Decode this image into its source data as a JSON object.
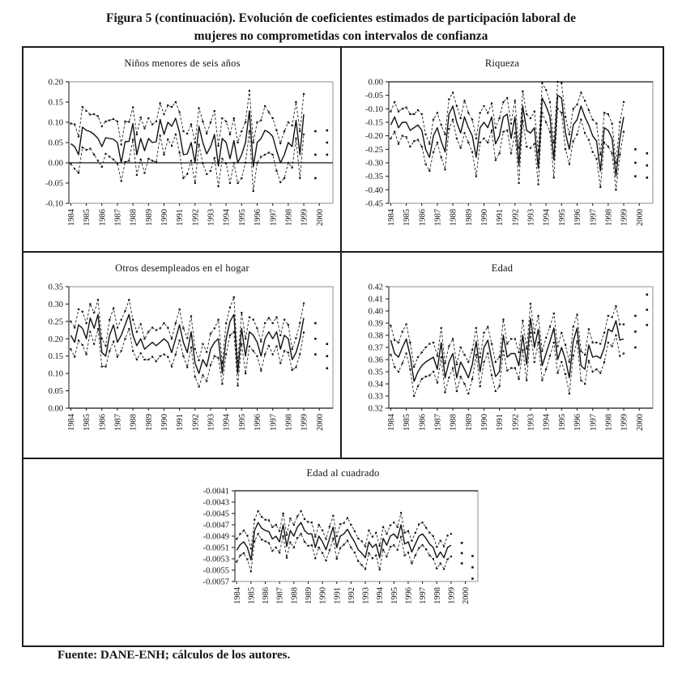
{
  "figure": {
    "title_line1": "Figura 5 (continuación). Evolución de coeficientes estimados de participación laboral de",
    "title_line2": "mujeres no comprometidas con intervalos de confianza",
    "source": "Fuente: DANE-ENH; cálculos de los autores."
  },
  "x_tick_labels": [
    "1984",
    "1985",
    "1986",
    "1987",
    "1988",
    "1989",
    "1990",
    "1991",
    "1992",
    "1993",
    "1994",
    "1995",
    "1996",
    "1997",
    "1998",
    "1999",
    "2000"
  ],
  "chart_data": [
    {
      "type": "line",
      "title": "Niños menores de seis años",
      "xlabel": "",
      "ylabel": "",
      "ylim": [
        -0.1,
        0.2
      ],
      "ytick_values": [
        0.2,
        0.15,
        0.1,
        0.05,
        0.0,
        -0.05,
        -0.1
      ],
      "ytick_labels": [
        "0.20",
        "0.15",
        "0.10",
        "0.05",
        "0.00",
        "-0.05",
        "-0.10"
      ],
      "axis_cross": 0.0,
      "x_frequency": "trimestral 1984-1999, puntos aislados hasta 2000",
      "legend_note": "línea sólida: coeficiente estimado; líneas punteadas: intervalo de confianza",
      "series": {
        "coef": [
          0.047,
          0.04,
          0.02,
          0.088,
          0.08,
          0.077,
          0.07,
          0.06,
          0.04,
          0.062,
          0.06,
          0.058,
          0.05,
          0.0,
          0.052,
          0.053,
          0.097,
          0.02,
          0.06,
          0.03,
          0.06,
          0.05,
          0.052,
          0.107,
          0.07,
          0.1,
          0.09,
          0.11,
          0.075,
          0.02,
          0.022,
          0.05,
          0.0,
          0.09,
          0.05,
          0.022,
          0.04,
          0.07,
          -0.008,
          0.06,
          0.05,
          0.01,
          0.055,
          0.0,
          0.02,
          0.05,
          0.128,
          -0.01,
          0.05,
          0.06,
          0.08,
          0.075,
          0.065,
          0.03,
          0.0,
          0.02,
          0.05,
          0.04,
          0.105,
          0.02,
          0.12
        ],
        "ci_halfwidth": [
          0.05,
          0.055,
          0.045,
          0.05,
          0.048,
          0.042,
          0.05,
          0.055,
          0.05,
          0.04,
          0.045,
          0.05,
          0.052,
          0.045,
          0.05,
          0.048,
          0.04,
          0.05,
          0.052,
          0.055,
          0.05,
          0.045,
          0.05,
          0.04,
          0.05,
          0.042,
          0.048,
          0.04,
          0.05,
          0.058,
          0.05,
          0.045,
          0.05,
          0.045,
          0.052,
          0.05,
          0.06,
          0.058,
          0.05,
          0.05,
          0.052,
          0.06,
          0.055,
          0.05,
          0.058,
          0.05,
          0.05,
          0.06,
          0.05,
          0.045,
          0.06,
          0.05,
          0.045,
          0.05,
          0.048,
          0.058,
          0.05,
          0.052,
          0.045,
          0.058,
          0.05
        ]
      },
      "isolated_points": {
        "slots": [
          63,
          66
        ],
        "coef": [
          0.02,
          0.05
        ],
        "ci_halfwidth": [
          0.058,
          0.03
        ]
      }
    },
    {
      "type": "line",
      "title": "Riqueza",
      "xlabel": "",
      "ylabel": "",
      "ylim": [
        -0.45,
        0.0
      ],
      "ytick_values": [
        0.0,
        -0.05,
        -0.1,
        -0.15,
        -0.2,
        -0.25,
        -0.3,
        -0.35,
        -0.4,
        -0.45
      ],
      "ytick_labels": [
        "0.00",
        "-0.05",
        "-0.10",
        "-0.15",
        "-0.20",
        "-0.25",
        "-0.30",
        "-0.35",
        "-0.40",
        "-0.45"
      ],
      "axis_cross": 0.0,
      "x_frequency": "trimestral 1984-1999, puntos aislados hasta 2000",
      "legend_note": "línea sólida: coeficiente estimado; líneas punteadas: intervalo de confianza",
      "series": {
        "coef": [
          -0.16,
          -0.13,
          -0.17,
          -0.15,
          -0.15,
          -0.18,
          -0.17,
          -0.16,
          -0.18,
          -0.25,
          -0.28,
          -0.2,
          -0.17,
          -0.22,
          -0.26,
          -0.12,
          -0.09,
          -0.15,
          -0.19,
          -0.13,
          -0.17,
          -0.2,
          -0.28,
          -0.17,
          -0.15,
          -0.17,
          -0.13,
          -0.23,
          -0.2,
          -0.13,
          -0.12,
          -0.21,
          -0.13,
          -0.31,
          -0.09,
          -0.18,
          -0.19,
          -0.17,
          -0.32,
          -0.06,
          -0.09,
          -0.13,
          -0.29,
          -0.05,
          -0.06,
          -0.19,
          -0.25,
          -0.16,
          -0.14,
          -0.09,
          -0.13,
          -0.16,
          -0.2,
          -0.22,
          -0.33,
          -0.17,
          -0.18,
          -0.21,
          -0.35,
          -0.21,
          -0.13
        ],
        "ci_halfwidth": [
          0.05,
          0.055,
          0.06,
          0.05,
          0.055,
          0.06,
          0.05,
          0.055,
          0.06,
          0.055,
          0.05,
          0.06,
          0.055,
          0.06,
          0.065,
          0.055,
          0.05,
          0.06,
          0.055,
          0.06,
          0.055,
          0.06,
          0.07,
          0.055,
          0.06,
          0.055,
          0.05,
          0.06,
          0.065,
          0.055,
          0.06,
          0.055,
          0.06,
          0.065,
          0.055,
          0.06,
          0.055,
          0.06,
          0.06,
          0.055,
          0.06,
          0.055,
          0.065,
          0.05,
          0.055,
          0.06,
          0.055,
          0.06,
          0.055,
          0.05,
          0.06,
          0.055,
          0.06,
          0.065,
          0.06,
          0.055,
          0.06,
          0.055,
          0.05,
          0.06,
          0.055
        ]
      },
      "isolated_points": {
        "slots": [
          63,
          66
        ],
        "coef": [
          -0.3,
          -0.31
        ],
        "ci_halfwidth": [
          0.05,
          0.045
        ]
      }
    },
    {
      "type": "line",
      "title": "Otros desempleados en el hogar",
      "xlabel": "",
      "ylabel": "",
      "ylim": [
        0.0,
        0.35
      ],
      "ytick_values": [
        0.35,
        0.3,
        0.25,
        0.2,
        0.15,
        0.1,
        0.05,
        0.0
      ],
      "ytick_labels": [
        "0.35",
        "0.30",
        "0.25",
        "0.20",
        "0.15",
        "0.10",
        "0.05",
        "0.00"
      ],
      "axis_cross": 0.0,
      "x_frequency": "trimestral 1984-1999, puntos aislados hasta 2000",
      "legend_note": "línea sólida: coeficiente estimado; líneas punteadas: intervalo de confianza",
      "series": {
        "coef": [
          0.21,
          0.19,
          0.24,
          0.23,
          0.2,
          0.26,
          0.23,
          0.27,
          0.16,
          0.15,
          0.21,
          0.24,
          0.19,
          0.21,
          0.24,
          0.27,
          0.21,
          0.18,
          0.2,
          0.17,
          0.18,
          0.19,
          0.18,
          0.19,
          0.2,
          0.19,
          0.16,
          0.2,
          0.24,
          0.19,
          0.16,
          0.22,
          0.13,
          0.1,
          0.14,
          0.12,
          0.17,
          0.19,
          0.2,
          0.1,
          0.2,
          0.25,
          0.27,
          0.1,
          0.23,
          0.15,
          0.22,
          0.21,
          0.19,
          0.15,
          0.2,
          0.22,
          0.2,
          0.22,
          0.17,
          0.21,
          0.2,
          0.14,
          0.16,
          0.2,
          0.26
        ],
        "ci_halfwidth": [
          0.04,
          0.042,
          0.045,
          0.048,
          0.045,
          0.04,
          0.045,
          0.042,
          0.04,
          0.03,
          0.045,
          0.048,
          0.042,
          0.045,
          0.04,
          0.042,
          0.045,
          0.04,
          0.042,
          0.03,
          0.04,
          0.042,
          0.045,
          0.04,
          0.045,
          0.042,
          0.04,
          0.045,
          0.045,
          0.04,
          0.042,
          0.045,
          0.04,
          0.038,
          0.045,
          0.042,
          0.045,
          0.04,
          0.055,
          0.03,
          0.045,
          0.04,
          0.05,
          0.035,
          0.045,
          0.05,
          0.042,
          0.045,
          0.04,
          0.042,
          0.045,
          0.04,
          0.045,
          0.042,
          0.04,
          0.045,
          0.04,
          0.03,
          0.042,
          0.045,
          0.042
        ]
      },
      "isolated_points": {
        "slots": [
          63,
          66
        ],
        "coef": [
          0.2,
          0.15
        ],
        "ci_halfwidth": [
          0.045,
          0.035
        ]
      }
    },
    {
      "type": "line",
      "title": "Edad",
      "xlabel": "",
      "ylabel": "",
      "ylim": [
        0.32,
        0.42
      ],
      "ytick_values": [
        0.42,
        0.41,
        0.4,
        0.39,
        0.38,
        0.37,
        0.36,
        0.35,
        0.34,
        0.33,
        0.32
      ],
      "ytick_labels": [
        "0.42",
        "0.41",
        "0.40",
        "0.39",
        "0.38",
        "0.37",
        "0.36",
        "0.35",
        "0.34",
        "0.33",
        "0.32"
      ],
      "axis_cross": 0.32,
      "x_frequency": "trimestral 1984-1999, puntos aislados hasta 2000",
      "legend_note": "línea sólida: coeficiente estimado; líneas punteadas: intervalo de confianza",
      "series": {
        "coef": [
          0.376,
          0.365,
          0.362,
          0.37,
          0.377,
          0.363,
          0.342,
          0.35,
          0.355,
          0.358,
          0.36,
          0.362,
          0.352,
          0.374,
          0.345,
          0.358,
          0.365,
          0.345,
          0.358,
          0.352,
          0.345,
          0.356,
          0.375,
          0.35,
          0.37,
          0.376,
          0.36,
          0.346,
          0.35,
          0.38,
          0.362,
          0.365,
          0.365,
          0.355,
          0.38,
          0.356,
          0.394,
          0.37,
          0.385,
          0.355,
          0.365,
          0.375,
          0.386,
          0.36,
          0.37,
          0.36,
          0.345,
          0.375,
          0.386,
          0.355,
          0.352,
          0.372,
          0.362,
          0.363,
          0.361,
          0.37,
          0.385,
          0.383,
          0.392,
          0.376,
          0.377
        ],
        "ci_halfwidth": [
          0.012,
          0.011,
          0.012,
          0.013,
          0.012,
          0.011,
          0.012,
          0.012,
          0.011,
          0.012,
          0.013,
          0.012,
          0.011,
          0.012,
          0.012,
          0.013,
          0.012,
          0.011,
          0.012,
          0.012,
          0.013,
          0.012,
          0.011,
          0.012,
          0.012,
          0.011,
          0.013,
          0.012,
          0.012,
          0.013,
          0.011,
          0.012,
          0.012,
          0.011,
          0.012,
          0.013,
          0.012,
          0.012,
          0.011,
          0.012,
          0.013,
          0.012,
          0.012,
          0.011,
          0.012,
          0.012,
          0.013,
          0.012,
          0.011,
          0.012,
          0.012,
          0.013,
          0.012,
          0.011,
          0.012,
          0.012,
          0.011,
          0.012,
          0.012,
          0.013,
          0.012
        ]
      },
      "isolated_points": {
        "slots": [
          63,
          66
        ],
        "coef": [
          0.383,
          0.401
        ],
        "ci_halfwidth": [
          0.013,
          0.0125
        ]
      }
    },
    {
      "type": "line",
      "title": "Edad al cuadrado",
      "xlabel": "",
      "ylabel": "",
      "ylim": [
        -0.0057,
        -0.0041
      ],
      "ytick_values": [
        -0.0041,
        -0.0043,
        -0.0045,
        -0.0047,
        -0.0049,
        -0.0051,
        -0.0053,
        -0.0055,
        -0.0057
      ],
      "ytick_labels": [
        "-0.0041",
        "-0.0043",
        "-0.0045",
        "-0.0047",
        "-0.0049",
        "-0.0051",
        "-0.0053",
        "-0.0055",
        "-0.0057"
      ],
      "axis_cross": -0.0041,
      "x_frequency": "trimestral 1984-1999, puntos aislados hasta 2000",
      "legend_note": "línea sólida: coeficiente estimado; líneas punteadas: intervalo de confianza",
      "series": {
        "coef": [
          -0.00515,
          -0.00505,
          -0.005,
          -0.0051,
          -0.00532,
          -0.0048,
          -0.00466,
          -0.00476,
          -0.0048,
          -0.00482,
          -0.00495,
          -0.0049,
          -0.005,
          -0.0047,
          -0.00508,
          -0.0048,
          -0.0049,
          -0.00474,
          -0.00466,
          -0.0048,
          -0.00486,
          -0.00486,
          -0.0051,
          -0.0049,
          -0.005,
          -0.00514,
          -0.00494,
          -0.00474,
          -0.0051,
          -0.0049,
          -0.00486,
          -0.00478,
          -0.0049,
          -0.005,
          -0.00514,
          -0.0052,
          -0.00528,
          -0.005,
          -0.0051,
          -0.00504,
          -0.00528,
          -0.00494,
          -0.00506,
          -0.0049,
          -0.00486,
          -0.00494,
          -0.0047,
          -0.00504,
          -0.005,
          -0.00518,
          -0.00504,
          -0.0049,
          -0.00486,
          -0.00494,
          -0.00504,
          -0.0051,
          -0.00528,
          -0.00518,
          -0.00528,
          -0.0051,
          -0.00506
        ],
        "ci_halfwidth": [
          0.0002,
          0.00019,
          0.0002,
          0.00021,
          0.0002,
          0.00019,
          0.0002,
          0.0002,
          0.00019,
          0.0002,
          0.00021,
          0.0002,
          0.00019,
          0.0002,
          0.0002,
          0.00021,
          0.0002,
          0.00019,
          0.0002,
          0.0002,
          0.00021,
          0.0002,
          0.00019,
          0.0002,
          0.0002,
          0.00019,
          0.00021,
          0.0002,
          0.0002,
          0.00021,
          0.00019,
          0.0002,
          0.0002,
          0.00019,
          0.0002,
          0.00021,
          0.0002,
          0.0002,
          0.00019,
          0.0002,
          0.00021,
          0.0002,
          0.0002,
          0.00019,
          0.0002,
          0.0002,
          0.00021,
          0.0002,
          0.00019,
          0.0002,
          0.0002,
          0.00021,
          0.0002,
          0.00019,
          0.0002,
          0.0002,
          0.00019,
          0.0002,
          0.0002,
          0.00021,
          0.0002
        ]
      },
      "isolated_points": {
        "slots": [
          63,
          66
        ],
        "coef": [
          -0.0052,
          -0.00545
        ],
        "ci_halfwidth": [
          0.00018,
          0.0002
        ]
      }
    }
  ]
}
